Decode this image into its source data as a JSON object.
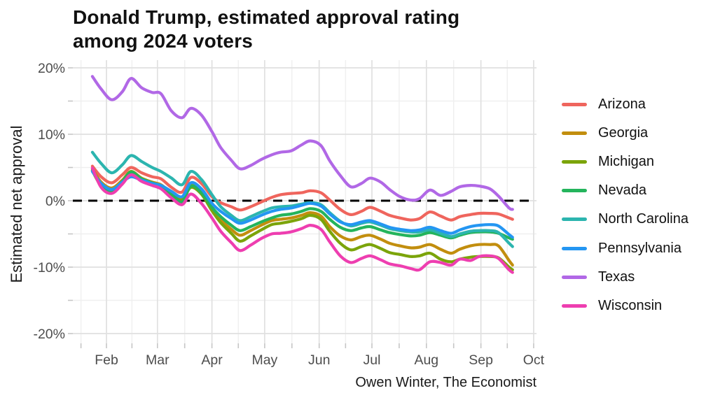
{
  "header": {
    "title": "Donald Trump, estimated approval rating\namong 2024 voters"
  },
  "y_axis": {
    "title": "Estimated net approval"
  },
  "caption": "Owen Winter, The Economist",
  "chart_data": {
    "type": "line",
    "title": "Donald Trump, estimated approval rating among 2024 voters",
    "xlabel": "",
    "ylabel": "Estimated net approval",
    "legend_position": "right",
    "grid": "on",
    "ylim": [
      -21.5,
      21.2
    ],
    "x_unit": "days since Feb 1 2024",
    "x": [
      -8,
      -3,
      3,
      9,
      14,
      20,
      26,
      31,
      37,
      43,
      48,
      54,
      60,
      65,
      71,
      76,
      82,
      88,
      94,
      99,
      105,
      111,
      116,
      122,
      127,
      133,
      139,
      145,
      150,
      156,
      161,
      167,
      173,
      178,
      184,
      190,
      196,
      201,
      207,
      212,
      218,
      223,
      229,
      231
    ],
    "x_ticks": {
      "labels": [
        "Feb",
        "Mar",
        "Apr",
        "May",
        "Jun",
        "Jul",
        "Aug",
        "Sep",
        "Oct"
      ],
      "days": [
        0,
        29,
        60,
        90,
        121,
        151,
        182,
        213,
        243
      ],
      "minor_days": [
        -14.5,
        14.5,
        44.5,
        75,
        105.5,
        136,
        166.5,
        197.5,
        228
      ]
    },
    "y_ticks": {
      "labels": [
        "20%",
        "10%",
        "0%",
        "-10%",
        "-20%"
      ],
      "values": [
        20,
        10,
        0,
        -10,
        -20
      ],
      "minor_values": [
        15,
        5,
        -5,
        -15
      ]
    },
    "zero_line": {
      "value": 0,
      "style": "dashed",
      "color": "#000000"
    },
    "series": [
      {
        "name": "Arizona",
        "color": "#EF655D",
        "values": [
          5.2,
          3.6,
          2.7,
          3.9,
          5.0,
          4.2,
          3.6,
          3.3,
          2.0,
          1.3,
          3.5,
          2.6,
          0.6,
          -0.3,
          -0.9,
          -1.4,
          -0.9,
          -0.2,
          0.5,
          0.9,
          1.1,
          1.2,
          1.5,
          1.2,
          0.1,
          -1.3,
          -2.1,
          -1.6,
          -1.0,
          -1.6,
          -2.2,
          -2.6,
          -2.9,
          -2.7,
          -1.7,
          -2.3,
          -2.9,
          -2.4,
          -2.1,
          -1.9,
          -1.9,
          -2.0,
          -2.6,
          -2.8
        ]
      },
      {
        "name": "Georgia",
        "color": "#C28E0E",
        "values": [
          4.8,
          2.8,
          1.9,
          3.1,
          4.4,
          3.4,
          2.8,
          2.4,
          1.2,
          0.4,
          2.4,
          1.4,
          -1.2,
          -2.9,
          -4.3,
          -5.2,
          -4.5,
          -3.7,
          -3.0,
          -2.8,
          -2.6,
          -2.2,
          -1.8,
          -2.3,
          -3.9,
          -5.3,
          -5.9,
          -5.4,
          -5.2,
          -5.8,
          -6.4,
          -6.8,
          -7.1,
          -7.0,
          -6.6,
          -7.3,
          -7.9,
          -7.3,
          -6.8,
          -6.6,
          -6.6,
          -6.8,
          -9.0,
          -9.7
        ]
      },
      {
        "name": "Michigan",
        "color": "#7BA40A",
        "values": [
          4.5,
          2.2,
          1.3,
          2.8,
          4.4,
          3.2,
          2.6,
          2.1,
          0.9,
          0.1,
          2.0,
          1.0,
          -1.5,
          -3.3,
          -4.9,
          -6.1,
          -5.3,
          -4.4,
          -3.6,
          -3.4,
          -3.1,
          -2.7,
          -2.2,
          -2.8,
          -4.6,
          -6.4,
          -7.4,
          -6.9,
          -6.6,
          -7.2,
          -7.8,
          -8.1,
          -8.4,
          -8.3,
          -7.9,
          -8.8,
          -9.2,
          -8.8,
          -8.5,
          -8.4,
          -8.4,
          -8.6,
          -10.0,
          -10.4
        ]
      },
      {
        "name": "Nevada",
        "color": "#24B45C",
        "values": [
          4.6,
          2.4,
          1.5,
          2.9,
          4.3,
          3.3,
          2.7,
          2.2,
          1.0,
          -0.2,
          2.2,
          1.2,
          -1.0,
          -2.4,
          -3.7,
          -4.5,
          -3.9,
          -3.2,
          -2.6,
          -2.2,
          -2.0,
          -1.6,
          -1.2,
          -1.6,
          -2.8,
          -4.0,
          -4.5,
          -4.1,
          -3.9,
          -4.4,
          -4.8,
          -5.1,
          -5.3,
          -5.2,
          -4.8,
          -5.2,
          -5.6,
          -5.2,
          -4.8,
          -4.7,
          -4.7,
          -4.9,
          -5.6,
          -5.8
        ]
      },
      {
        "name": "North Carolina",
        "color": "#2CB5AF",
        "values": [
          7.3,
          5.6,
          4.2,
          5.4,
          6.8,
          5.9,
          5.0,
          4.4,
          3.4,
          2.4,
          4.4,
          3.2,
          0.9,
          -0.9,
          -2.2,
          -3.0,
          -2.4,
          -1.7,
          -1.1,
          -0.9,
          -0.8,
          -0.5,
          -0.3,
          -0.6,
          -1.8,
          -3.1,
          -3.8,
          -3.4,
          -3.2,
          -3.7,
          -4.2,
          -4.5,
          -4.7,
          -4.7,
          -4.4,
          -4.9,
          -5.4,
          -5.0,
          -4.6,
          -4.5,
          -4.5,
          -4.8,
          -6.4,
          -6.9
        ]
      },
      {
        "name": "Pennsylvania",
        "color": "#2496F2",
        "values": [
          4.4,
          2.6,
          1.7,
          2.8,
          3.6,
          3.1,
          2.6,
          2.3,
          1.4,
          0.6,
          2.7,
          1.8,
          -0.4,
          -1.6,
          -2.7,
          -3.4,
          -2.9,
          -2.2,
          -1.6,
          -1.3,
          -1.1,
          -0.7,
          -0.4,
          -0.8,
          -2.0,
          -3.2,
          -3.6,
          -3.2,
          -3.0,
          -3.5,
          -4.0,
          -4.3,
          -4.5,
          -4.4,
          -4.0,
          -4.5,
          -4.9,
          -4.4,
          -3.9,
          -3.7,
          -3.6,
          -3.8,
          -5.1,
          -5.5
        ]
      },
      {
        "name": "Texas",
        "color": "#B168E6",
        "values": [
          18.7,
          16.8,
          15.2,
          16.4,
          18.4,
          17.0,
          16.3,
          16.1,
          13.5,
          12.5,
          13.9,
          12.9,
          10.4,
          8.0,
          6.1,
          4.8,
          5.3,
          6.2,
          6.9,
          7.3,
          7.5,
          8.4,
          9.0,
          8.3,
          6.0,
          3.8,
          2.1,
          2.6,
          3.4,
          2.8,
          1.7,
          0.6,
          0.1,
          0.3,
          1.6,
          0.8,
          1.4,
          2.1,
          2.3,
          2.2,
          1.8,
          0.7,
          -1.1,
          -1.3
        ]
      },
      {
        "name": "Wisconsin",
        "color": "#EE3EB0",
        "values": [
          4.9,
          2.0,
          1.1,
          2.5,
          3.9,
          2.9,
          2.3,
          1.8,
          0.4,
          -0.6,
          1.0,
          -0.4,
          -2.6,
          -4.6,
          -6.3,
          -7.5,
          -6.7,
          -5.7,
          -5.0,
          -4.9,
          -4.7,
          -4.2,
          -3.7,
          -4.3,
          -6.2,
          -8.3,
          -9.3,
          -8.7,
          -8.3,
          -8.9,
          -9.5,
          -9.8,
          -10.2,
          -10.4,
          -9.2,
          -9.3,
          -9.7,
          -8.8,
          -9.0,
          -8.4,
          -8.3,
          -8.7,
          -10.4,
          -10.8
        ]
      }
    ]
  }
}
